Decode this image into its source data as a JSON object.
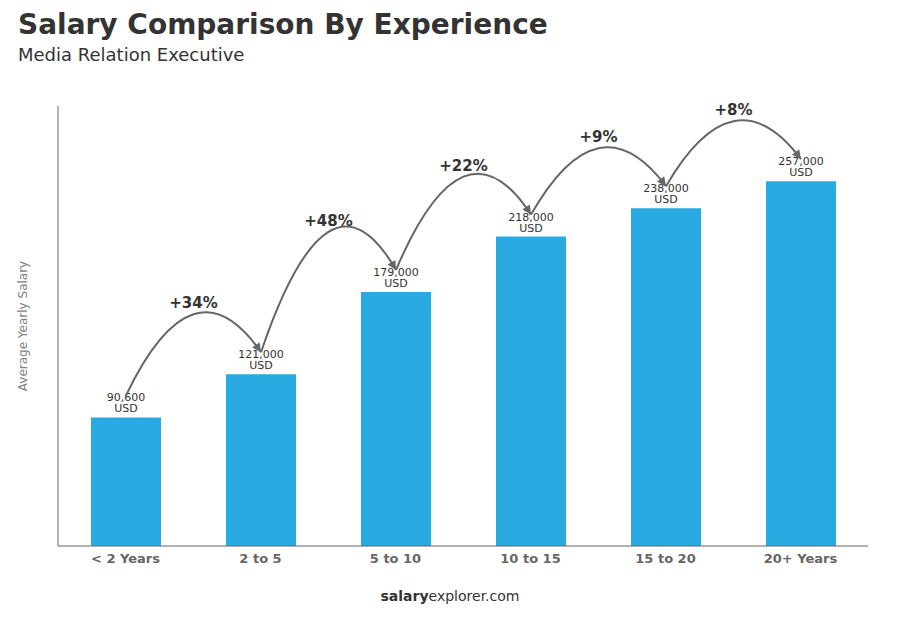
{
  "chart_data": {
    "type": "bar",
    "title": "Salary Comparison By Experience",
    "subtitle": "Media Relation Executive",
    "categories": [
      "< 2 Years",
      "2 to 5",
      "5 to 10",
      "10 to 15",
      "15 to 20",
      "20+ Years"
    ],
    "values": [
      90600,
      121000,
      179000,
      218000,
      238000,
      257000
    ],
    "value_labels": [
      "90,600 USD",
      "121,000 USD",
      "179,000 USD",
      "218,000 USD",
      "238,000 USD",
      "257,000 USD"
    ],
    "data_labels": true,
    "annotations": [
      "+34%",
      "+48%",
      "+22%",
      "+9%",
      "+8%"
    ],
    "watermark": [
      "salary",
      "explorer.com"
    ],
    "ylabel": "Average Yearly Salary",
    "color": "#29ABE2",
    "ylim": [
      0,
      310000
    ],
    "tick_labels": "x",
    "grid": false
  }
}
